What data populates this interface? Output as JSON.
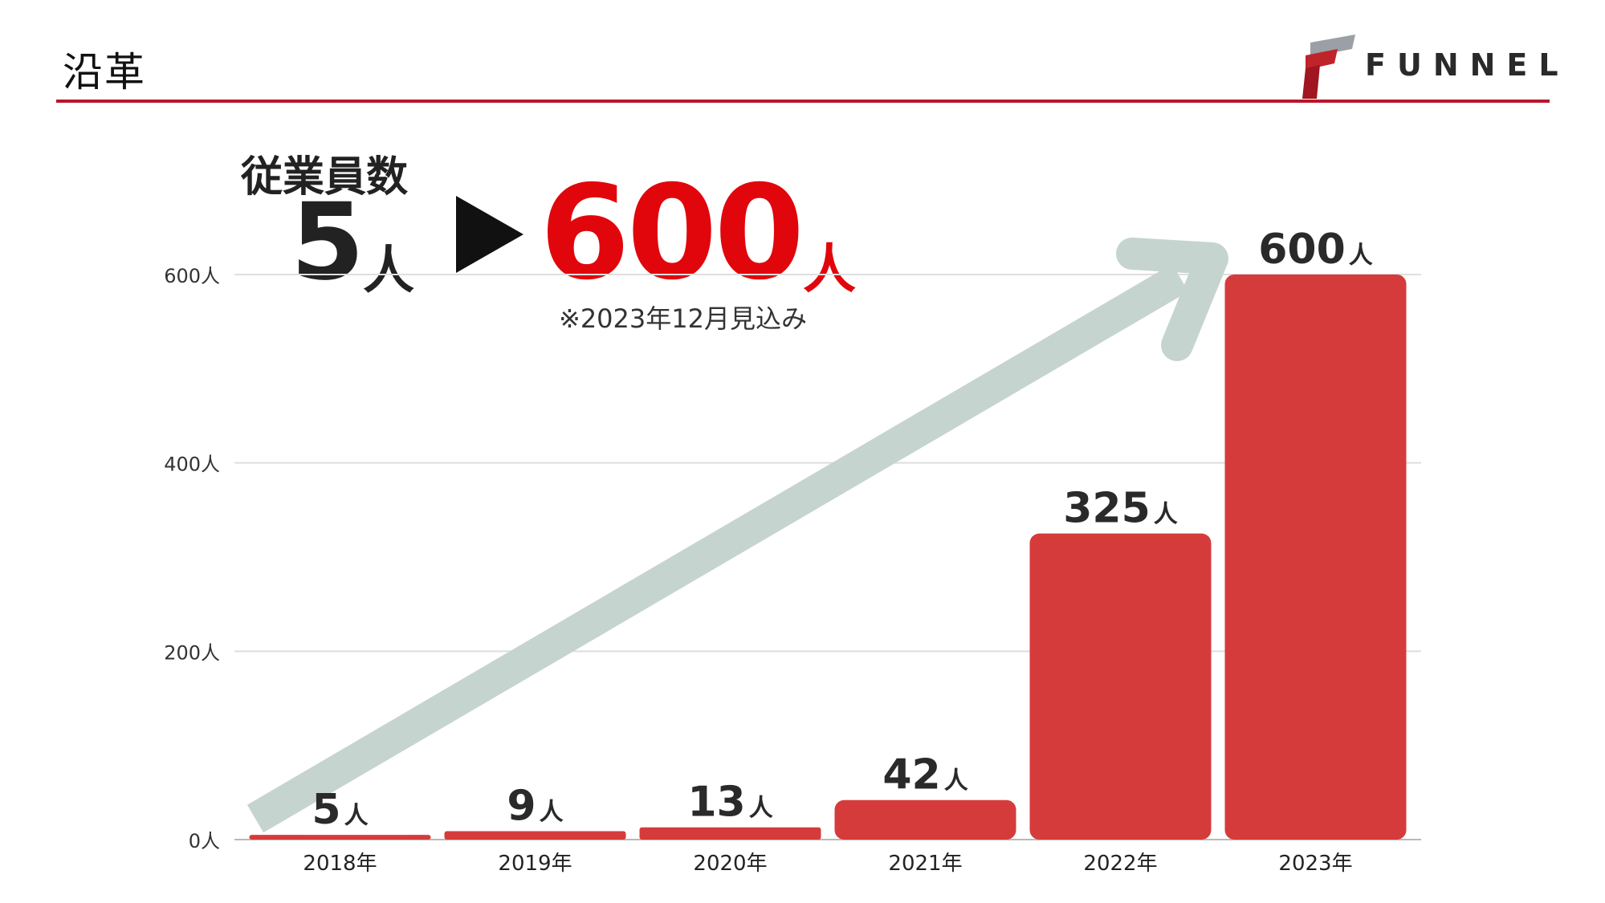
{
  "header": {
    "title": "沿革",
    "logo_text": "FUNNEL",
    "rule_color": "#b8152d"
  },
  "headline": {
    "label": "従業員数",
    "start_value": "5",
    "start_unit": "人",
    "arrow_glyph": "▶",
    "end_value": "600",
    "end_unit": "人",
    "note": "※2023年12月見込み",
    "accent_color": "#e1060c"
  },
  "chart_data": {
    "type": "bar",
    "categories": [
      "2018年",
      "2019年",
      "2020年",
      "2021年",
      "2022年",
      "2023年"
    ],
    "values": [
      5,
      9,
      13,
      42,
      325,
      600
    ],
    "data_labels": [
      {
        "num": "5",
        "unit": "人"
      },
      {
        "num": "9",
        "unit": "人"
      },
      {
        "num": "13",
        "unit": "人"
      },
      {
        "num": "42",
        "unit": "人"
      },
      {
        "num": "325",
        "unit": "人"
      },
      {
        "num": "600",
        "unit": "人"
      }
    ],
    "y_ticks": [
      0,
      200,
      400,
      600
    ],
    "y_tick_labels": [
      "0人",
      "200人",
      "400人",
      "600人"
    ],
    "ylim": [
      0,
      600
    ],
    "grid": true,
    "bar_color": "#d63b3b",
    "trend_arrow_color": "#c6d4d0",
    "title": "",
    "xlabel": "",
    "ylabel": ""
  }
}
